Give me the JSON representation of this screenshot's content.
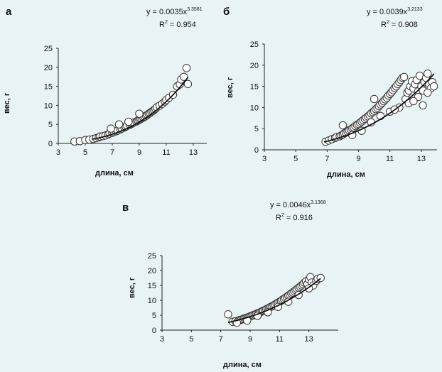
{
  "chart_data": [
    {
      "type": "scatter",
      "panel_label": "а",
      "equation": {
        "base": "y = 0.0035x",
        "exponent": "3.3581"
      },
      "r_squared": {
        "lhs": "R",
        "exp": "2",
        "rhs": " = 0.954"
      },
      "fit": {
        "a": 0.0035,
        "b": 3.3581,
        "x_from": 5.5,
        "x_to": 12.6
      },
      "xlabel": "длина, см",
      "ylabel": "вес, г",
      "xlim": [
        3,
        14
      ],
      "ylim": [
        0,
        25
      ],
      "xticks": [
        3,
        5,
        7,
        9,
        11,
        13
      ],
      "yticks": [
        0,
        5,
        10,
        15,
        20,
        25
      ],
      "grid": false,
      "points": {
        "x": [
          4.2,
          4.6,
          5.0,
          5.3,
          5.6,
          5.8,
          6.0,
          6.1,
          6.3,
          6.5,
          6.7,
          6.8,
          7.0,
          7.1,
          7.3,
          7.4,
          7.6,
          7.7,
          7.9,
          8.0,
          8.1,
          8.3,
          8.4,
          8.5,
          8.6,
          8.8,
          8.9,
          9.0,
          9.1,
          9.2,
          9.3,
          9.4,
          9.5,
          9.6,
          9.7,
          9.8,
          9.9,
          10.0,
          10.1,
          10.2,
          10.3,
          10.5,
          10.7,
          10.9,
          11.0,
          11.2,
          11.5,
          11.8,
          12.0,
          12.1,
          12.3,
          12.5,
          12.6,
          7.5,
          8.2,
          6.9,
          9.0
        ],
        "y": [
          0.5,
          0.6,
          0.9,
          1.0,
          1.2,
          1.4,
          1.6,
          1.8,
          1.9,
          2.1,
          2.4,
          2.6,
          2.8,
          3.0,
          3.2,
          3.4,
          3.7,
          3.9,
          4.2,
          4.4,
          4.7,
          4.9,
          5.1,
          5.3,
          5.5,
          5.8,
          6.0,
          6.2,
          6.4,
          6.6,
          6.8,
          7.0,
          7.3,
          7.5,
          7.8,
          8.0,
          8.3,
          8.5,
          8.8,
          9.1,
          9.5,
          9.9,
          10.4,
          11.0,
          11.4,
          12.0,
          12.8,
          15.0,
          15.5,
          16.8,
          17.5,
          19.8,
          15.6,
          5.0,
          5.7,
          3.9,
          7.8
        ]
      }
    },
    {
      "type": "scatter",
      "panel_label": "б",
      "equation": {
        "base": "y = 0.0039x",
        "exponent": "3.2133"
      },
      "r_squared": {
        "lhs": "R",
        "exp": "2",
        "rhs": " = 0.908"
      },
      "fit": {
        "a": 0.0039,
        "b": 3.2133,
        "x_from": 6.8,
        "x_to": 13.8
      },
      "xlabel": "длина, см",
      "ylabel": "вес, г",
      "xlim": [
        3,
        14
      ],
      "ylim": [
        0,
        25
      ],
      "xticks": [
        3,
        5,
        7,
        9,
        11,
        13
      ],
      "yticks": [
        0,
        5,
        10,
        15,
        20,
        25
      ],
      "grid": false,
      "points": {
        "x": [
          6.9,
          7.1,
          7.3,
          7.5,
          7.6,
          7.8,
          7.9,
          8.0,
          8.1,
          8.2,
          8.3,
          8.4,
          8.5,
          8.6,
          8.7,
          8.8,
          8.9,
          9.0,
          9.1,
          9.2,
          9.3,
          9.4,
          9.5,
          9.6,
          9.7,
          9.8,
          9.9,
          10.0,
          10.1,
          10.2,
          10.3,
          10.4,
          10.5,
          10.6,
          10.7,
          10.8,
          10.9,
          11.0,
          11.1,
          11.2,
          11.3,
          11.4,
          11.5,
          11.6,
          11.7,
          11.8,
          11.9,
          12.0,
          12.1,
          12.2,
          12.3,
          12.4,
          12.5,
          12.6,
          12.7,
          12.8,
          12.9,
          13.0,
          13.1,
          13.2,
          13.3,
          13.4,
          13.5,
          13.6,
          13.7,
          13.8,
          8.0,
          8.6,
          9.2,
          9.8,
          10.4,
          11.0,
          11.6,
          12.2,
          12.8,
          13.4,
          10.0,
          11.3,
          12.5,
          13.1
        ],
        "y": [
          1.9,
          2.2,
          2.5,
          2.8,
          3.0,
          3.2,
          3.4,
          3.6,
          3.9,
          4.1,
          4.3,
          4.6,
          4.8,
          5.1,
          5.3,
          5.6,
          5.9,
          6.1,
          6.4,
          6.7,
          7.0,
          7.3,
          7.6,
          7.9,
          8.2,
          8.6,
          8.9,
          9.2,
          9.6,
          9.9,
          10.3,
          10.7,
          11.1,
          11.5,
          11.9,
          12.3,
          12.8,
          13.2,
          13.6,
          14.1,
          14.6,
          15.0,
          15.5,
          16.0,
          16.5,
          17.0,
          17.2,
          12.0,
          13.5,
          14.0,
          15.0,
          16.2,
          14.5,
          15.5,
          16.5,
          13.8,
          17.5,
          15.0,
          14.0,
          16.0,
          17.0,
          18.0,
          15.5,
          14.5,
          16.0,
          15.0,
          5.8,
          3.5,
          4.5,
          6.5,
          8.0,
          9.0,
          10.0,
          11.0,
          12.5,
          13.5,
          12.0,
          9.5,
          11.5,
          10.5
        ]
      }
    },
    {
      "type": "scatter",
      "panel_label": "в",
      "equation": {
        "base": "y = 0.0046x",
        "exponent": "3.1368"
      },
      "r_squared": {
        "lhs": "R",
        "exp": "2",
        "rhs": " = 0.916"
      },
      "fit": {
        "a": 0.0046,
        "b": 3.1368,
        "x_from": 7.5,
        "x_to": 13.8
      },
      "xlabel": "длина, см",
      "ylabel": "вес, г",
      "xlim": [
        3,
        15
      ],
      "ylim": [
        0,
        25
      ],
      "xticks": [
        3,
        5,
        7,
        9,
        11,
        13
      ],
      "yticks": [
        0,
        5,
        10,
        15,
        20,
        25
      ],
      "grid": false,
      "points": {
        "x": [
          7.5,
          7.8,
          8.0,
          8.2,
          8.3,
          8.4,
          8.5,
          8.6,
          8.7,
          8.8,
          8.9,
          9.0,
          9.1,
          9.2,
          9.3,
          9.4,
          9.5,
          9.6,
          9.7,
          9.8,
          9.9,
          10.0,
          10.1,
          10.2,
          10.3,
          10.4,
          10.5,
          10.6,
          10.7,
          10.8,
          10.9,
          11.0,
          11.1,
          11.2,
          11.3,
          11.4,
          11.5,
          11.6,
          11.7,
          11.8,
          11.9,
          12.0,
          12.1,
          12.2,
          12.3,
          12.4,
          12.5,
          12.6,
          12.7,
          12.8,
          12.9,
          13.0,
          13.1,
          13.2,
          13.3,
          13.5,
          13.6,
          13.8,
          8.1,
          8.8,
          9.5,
          10.2,
          10.9,
          11.6,
          12.3,
          13.0
        ],
        "y": [
          5.3,
          2.8,
          3.0,
          3.2,
          3.4,
          3.5,
          3.7,
          3.9,
          4.0,
          4.2,
          4.4,
          4.6,
          4.8,
          5.0,
          5.2,
          5.4,
          5.6,
          5.8,
          6.0,
          6.3,
          6.5,
          6.7,
          7.0,
          7.2,
          7.5,
          7.8,
          8.0,
          8.3,
          8.6,
          8.9,
          9.2,
          9.5,
          9.8,
          10.2,
          10.5,
          10.8,
          11.2,
          11.5,
          11.9,
          12.3,
          12.6,
          13.0,
          13.4,
          13.8,
          14.2,
          14.6,
          15.0,
          15.4,
          15.9,
          16.3,
          15.5,
          17.0,
          17.8,
          16.0,
          15.0,
          16.5,
          17.2,
          17.5,
          2.5,
          3.2,
          4.8,
          6.0,
          7.8,
          9.5,
          11.8,
          14.0
        ]
      }
    }
  ]
}
